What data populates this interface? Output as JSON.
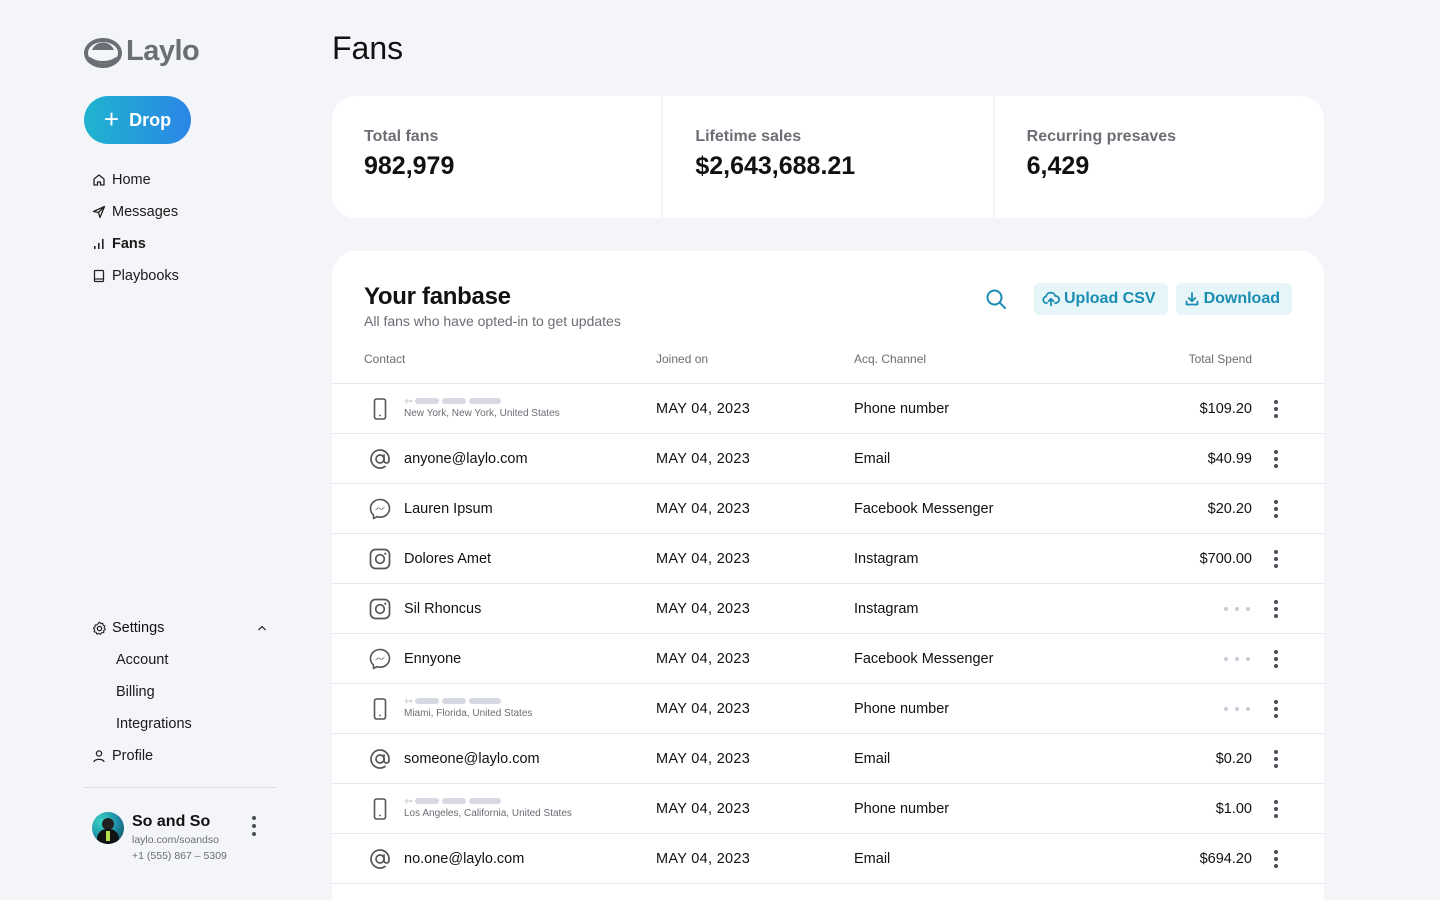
{
  "brand": {
    "name": "Laylo"
  },
  "sidebar": {
    "drop_label": "Drop",
    "nav": [
      {
        "label": "Home",
        "icon": "home-icon"
      },
      {
        "label": "Messages",
        "icon": "send-icon"
      },
      {
        "label": "Fans",
        "icon": "bar-chart-icon",
        "active": true
      },
      {
        "label": "Playbooks",
        "icon": "book-icon"
      }
    ],
    "settings": {
      "label": "Settings",
      "items": [
        "Account",
        "Billing",
        "Integrations"
      ]
    },
    "profile_label": "Profile",
    "user": {
      "name": "So and So",
      "url": "laylo.com/soandso",
      "phone": "+1 (555) 867 – 5309"
    }
  },
  "page": {
    "title": "Fans"
  },
  "stats": [
    {
      "label": "Total fans",
      "value": "982,979"
    },
    {
      "label": "Lifetime sales",
      "value": "$2,643,688.21"
    },
    {
      "label": "Recurring presaves",
      "value": "6,429"
    }
  ],
  "fanbase": {
    "title": "Your fanbase",
    "subtitle": "All fans who have opted-in to get updates",
    "upload_label": "Upload CSV",
    "download_label": "Download",
    "columns": {
      "contact": "Contact",
      "joined": "Joined on",
      "channel": "Acq. Channel",
      "spend": "Total Spend"
    },
    "rows": [
      {
        "type": "phone",
        "contact": "",
        "location": "New York, New York, United States",
        "joined": "MAY 04, 2023",
        "channel": "Phone number",
        "spend": "$109.20"
      },
      {
        "type": "email",
        "contact": "anyone@laylo.com",
        "joined": "MAY 04, 2023",
        "channel": "Email",
        "spend": "$40.99"
      },
      {
        "type": "messenger",
        "contact": "Lauren Ipsum",
        "joined": "MAY 04, 2023",
        "channel": "Facebook Messenger",
        "spend": "$20.20"
      },
      {
        "type": "instagram",
        "contact": "Dolores Amet",
        "joined": "MAY 04, 2023",
        "channel": "Instagram",
        "spend": "$700.00"
      },
      {
        "type": "instagram",
        "contact": "Sil Rhoncus",
        "joined": "MAY 04, 2023",
        "channel": "Instagram",
        "spend": ""
      },
      {
        "type": "messenger",
        "contact": "Ennyone",
        "joined": "MAY 04, 2023",
        "channel": "Facebook Messenger",
        "spend": ""
      },
      {
        "type": "phone",
        "contact": "",
        "location": "Miami, Florida, United States",
        "joined": "MAY 04, 2023",
        "channel": "Phone number",
        "spend": ""
      },
      {
        "type": "email",
        "contact": "someone@laylo.com",
        "joined": "MAY 04, 2023",
        "channel": "Email",
        "spend": "$0.20"
      },
      {
        "type": "phone",
        "contact": "",
        "location": "Los Angeles, California, United States",
        "joined": "MAY 04, 2023",
        "channel": "Phone number",
        "spend": "$1.00"
      },
      {
        "type": "email",
        "contact": "no.one@laylo.com",
        "joined": "MAY 04, 2023",
        "channel": "Email",
        "spend": "$694.20"
      }
    ]
  },
  "colors": {
    "accent": "#1b8db3",
    "gradient_start": "#1fb4cf",
    "gradient_end": "#2b86e6",
    "background": "#f4f5f9"
  }
}
